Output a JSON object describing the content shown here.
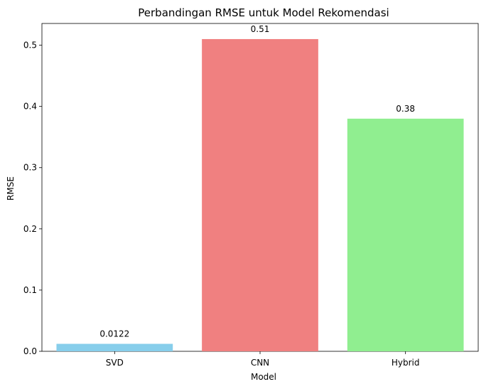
{
  "chart_data": {
    "type": "bar",
    "title": "Perbandingan RMSE untuk Model Rekomendasi",
    "xlabel": "Model",
    "ylabel": "RMSE",
    "categories": [
      "SVD",
      "CNN",
      "Hybrid"
    ],
    "values": [
      0.0122,
      0.51,
      0.38
    ],
    "value_labels": [
      "0.0122",
      "0.51",
      "0.38"
    ],
    "colors": [
      "#87ceeb",
      "#f08080",
      "#90ee90"
    ],
    "ylim": [
      0,
      0.5355
    ],
    "yticks": [
      0.0,
      0.1,
      0.2,
      0.3,
      0.4,
      0.5
    ],
    "ytick_labels": [
      "0.0",
      "0.1",
      "0.2",
      "0.3",
      "0.4",
      "0.5"
    ],
    "grid": false,
    "legend": "none"
  }
}
